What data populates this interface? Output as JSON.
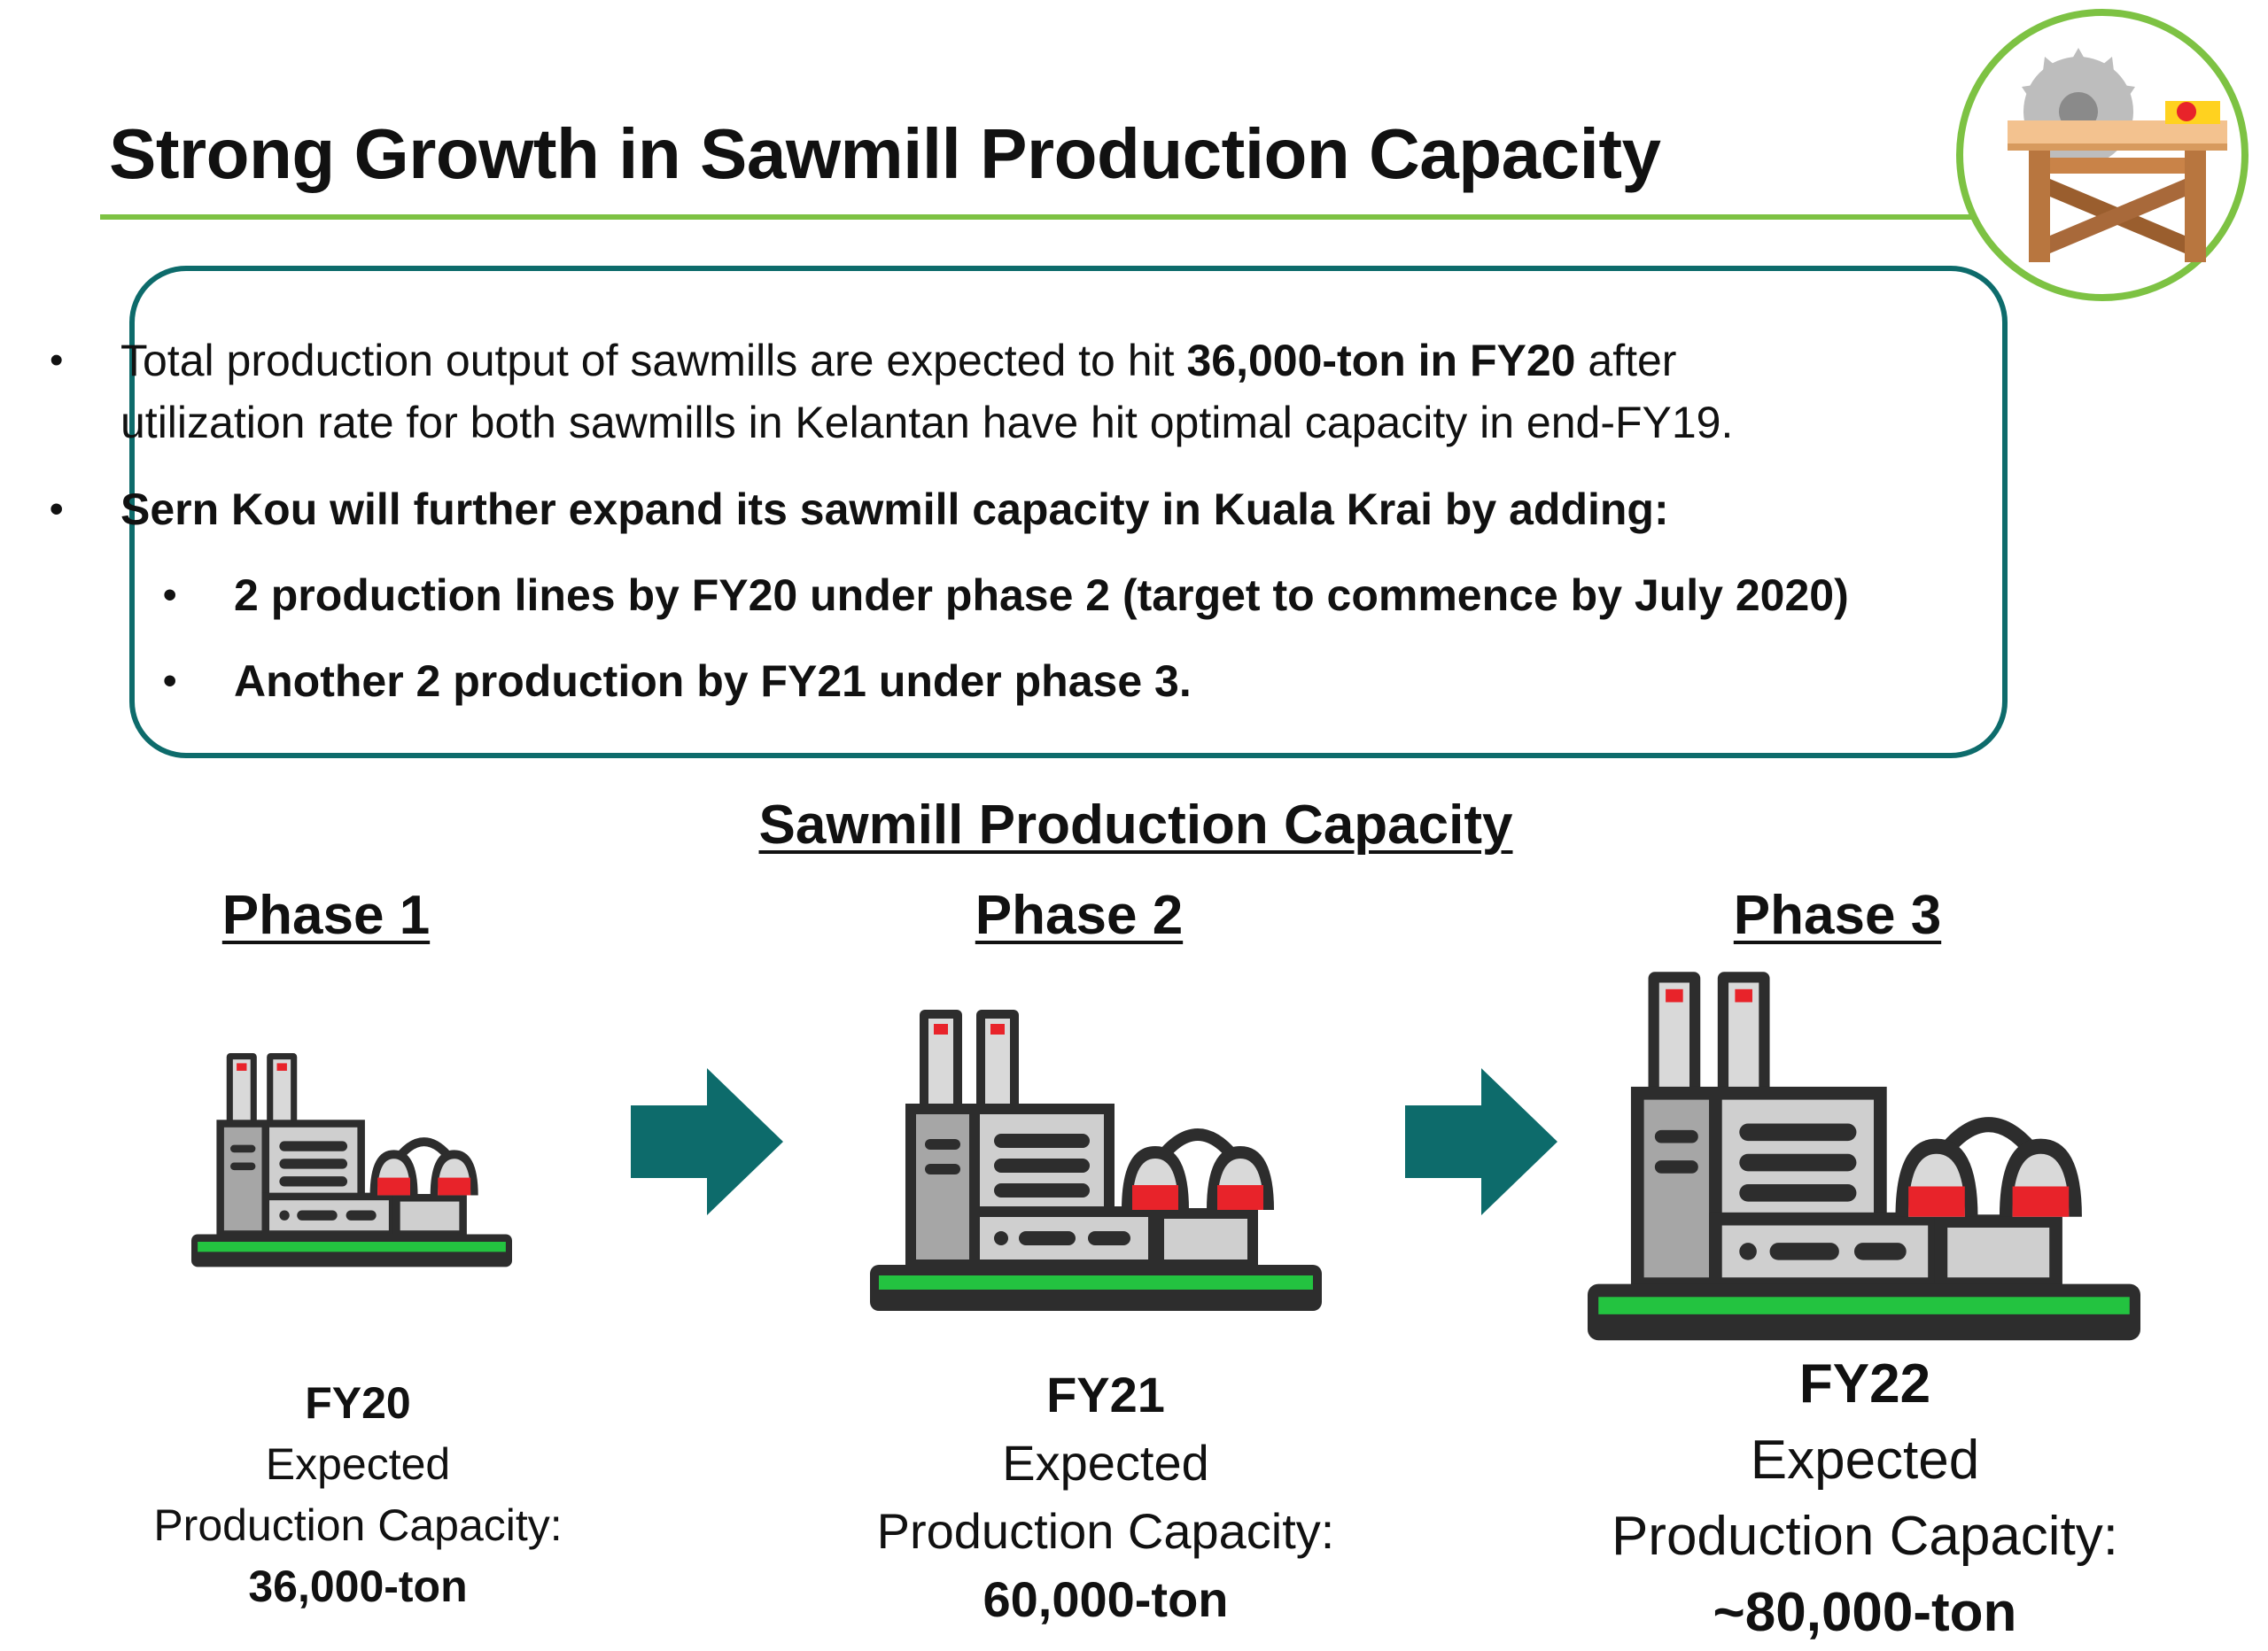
{
  "colors": {
    "accent": "#7dc243",
    "teal": "#0d6b6b",
    "factory_red": "#e8232a",
    "factory_green": "#23c340"
  },
  "header": {
    "title": "Strong Growth in Sawmill Production Capacity",
    "logo_icon": "sawmill-table-saw-icon"
  },
  "bullets": {
    "b1_prefix": "Total production output of sawmills are expected to hit ",
    "b1_bold": "36,000-ton in FY20",
    "b1_suffix": " after",
    "b1_line2": "utilization rate for both sawmills in Kelantan have hit optimal capacity in end-FY19.",
    "b2": "Sern Kou will further expand its sawmill capacity in Kuala Krai by adding:",
    "b3": "2 production lines by FY20 under phase 2 (target to commence by July 2020)",
    "b4": "Another 2 production by FY21 under phase 3."
  },
  "capacity": {
    "title": "Sawmill Production Capacity",
    "phases": [
      {
        "label": "Phase 1",
        "fy": "FY20",
        "expected": "Expected",
        "capacity_label": "Production Capacity:",
        "value": "36,000-ton"
      },
      {
        "label": "Phase 2",
        "fy": "FY21",
        "expected": "Expected",
        "capacity_label": "Production Capacity:",
        "value": "60,000-ton"
      },
      {
        "label": "Phase 3",
        "fy": "FY22",
        "expected": "Expected",
        "capacity_label": "Production Capacity:",
        "value": "~80,000-ton"
      }
    ],
    "icons": {
      "factory": "factory-icon",
      "arrow": "arrow-right-icon"
    }
  }
}
